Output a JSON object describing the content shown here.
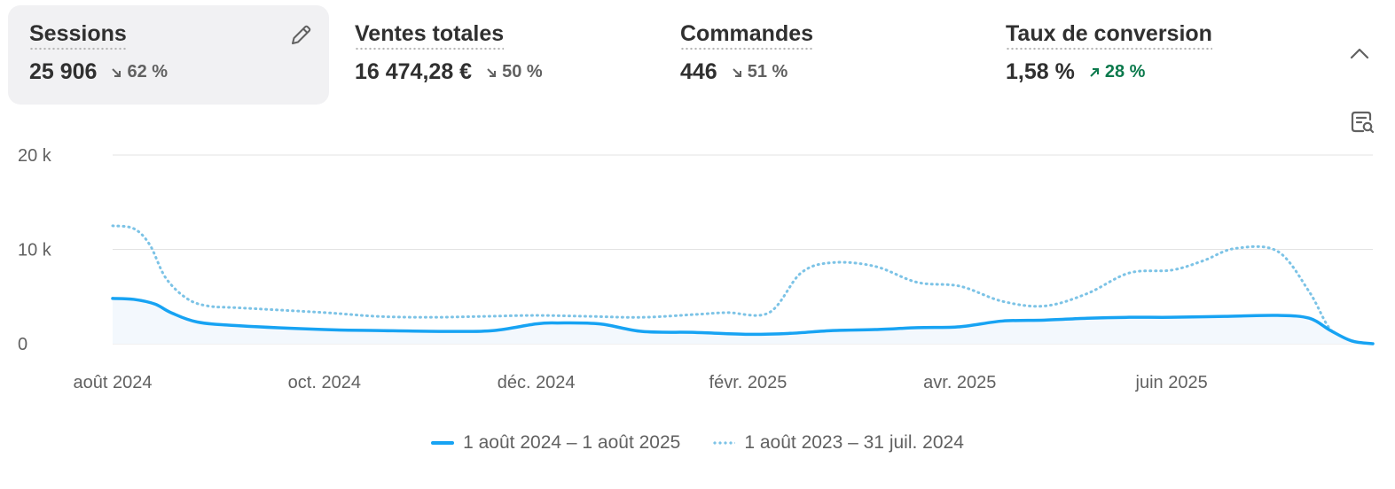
{
  "metrics": [
    {
      "title": "Sessions",
      "value": "25 906",
      "change": "62 %",
      "direction": "down",
      "active": true
    },
    {
      "title": "Ventes totales",
      "value": "16 474,28 €",
      "change": "50 %",
      "direction": "down",
      "active": false
    },
    {
      "title": "Commandes",
      "value": "446",
      "change": "51 %",
      "direction": "down",
      "active": false
    },
    {
      "title": "Taux de conversion",
      "value": "1,58 %",
      "change": "28 %",
      "direction": "up",
      "active": false
    }
  ],
  "icons": {
    "edit": "pencil-icon",
    "collapse": "chevron-up-icon",
    "filter": "document-search-icon"
  },
  "colors": {
    "current": "#17a3f3",
    "previous": "#7cc3e6",
    "grid": "#e3e3e3",
    "down": "#616161",
    "up": "#0c7a4d"
  },
  "chart_data": {
    "type": "line",
    "title": "",
    "xlabel": "",
    "ylabel": "",
    "ylim": [
      0,
      20000
    ],
    "yticks": [
      {
        "value": 0,
        "label": "0"
      },
      {
        "value": 10000,
        "label": "10 k"
      },
      {
        "value": 20000,
        "label": "20 k"
      }
    ],
    "x_tick_labels": [
      "août 2024",
      "oct. 2024",
      "déc. 2024",
      "févr. 2025",
      "avr. 2025",
      "juin 2025"
    ],
    "x_tick_positions": [
      0,
      2,
      4,
      6,
      8,
      10
    ],
    "x_range": [
      0,
      11.9
    ],
    "grid": true,
    "legend_position": "bottom",
    "series": [
      {
        "name": "1 août 2024 – 1 août 2025",
        "style": "solid",
        "x": [
          0,
          0.2,
          0.4,
          0.55,
          0.8,
          1.2,
          2,
          2.5,
          3.2,
          3.6,
          4,
          4.2,
          4.6,
          5,
          5.5,
          6,
          6.4,
          6.8,
          7.2,
          7.6,
          8,
          8.4,
          8.8,
          9.2,
          9.6,
          10,
          10.5,
          11,
          11.3,
          11.5,
          11.7,
          11.9
        ],
        "y": [
          4800,
          4700,
          4200,
          3300,
          2300,
          1900,
          1500,
          1400,
          1300,
          1400,
          2100,
          2200,
          2100,
          1300,
          1200,
          1000,
          1100,
          1400,
          1500,
          1700,
          1800,
          2400,
          2500,
          2700,
          2800,
          2800,
          2900,
          3000,
          2700,
          1400,
          300,
          0
        ]
      },
      {
        "name": "1 août 2023 – 31 juil. 2024",
        "style": "dotted",
        "x": [
          0,
          0.2,
          0.35,
          0.5,
          0.7,
          0.9,
          1.2,
          2,
          2.5,
          3,
          3.5,
          4,
          4.5,
          5,
          5.5,
          5.8,
          6.2,
          6.5,
          6.8,
          7.2,
          7.6,
          8,
          8.4,
          8.8,
          9.2,
          9.6,
          10,
          10.3,
          10.6,
          11,
          11.3,
          11.5,
          11.7,
          11.9
        ],
        "y": [
          12500,
          12200,
          10500,
          7000,
          4800,
          4000,
          3800,
          3300,
          2900,
          2800,
          2900,
          3000,
          2900,
          2800,
          3100,
          3300,
          3300,
          7500,
          8600,
          8200,
          6500,
          6100,
          4500,
          4000,
          5300,
          7500,
          7800,
          8800,
          10100,
          9800,
          5500,
          1500,
          300,
          0
        ]
      }
    ]
  }
}
